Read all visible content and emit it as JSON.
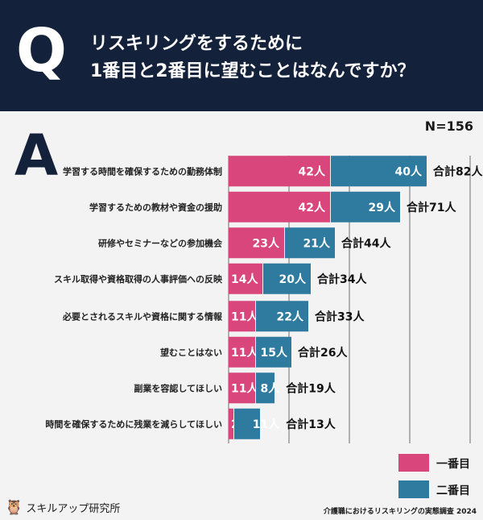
{
  "header": {
    "q": "Q",
    "title_line1": "リスキリングをするために",
    "title_line2": "1番目と2番目に望むことはなんですか？"
  },
  "answer_mark": "A",
  "sample": "N=156",
  "chart_data": {
    "type": "bar",
    "stacked": true,
    "orientation": "horizontal",
    "title": "リスキリングをするために1番目と2番目に望むことはなんですか？",
    "categories": [
      "学習する時間を確保するための勤務体制",
      "学習するための教材や資金の援助",
      "研修やセミナーなどの参加機会",
      "スキル取得や資格取得の人事評価への反映",
      "必要とされるスキルや資格に関する情報",
      "望むことはない",
      "副業を容認してほしい",
      "時間を確保するために残業を減らしてほしい"
    ],
    "series": [
      {
        "name": "一番目",
        "color": "#d8467b",
        "values": [
          42,
          42,
          23,
          14,
          11,
          11,
          11,
          2
        ]
      },
      {
        "name": "二番目",
        "color": "#2e7b9f",
        "values": [
          40,
          29,
          21,
          20,
          22,
          15,
          8,
          11
        ]
      }
    ],
    "totals": [
      82,
      71,
      44,
      34,
      33,
      26,
      19,
      13
    ],
    "unit": "人",
    "total_prefix": "合計",
    "xlim": [
      0,
      100
    ],
    "grid": true,
    "legend": "bottom-right"
  },
  "footer": {
    "brand": "スキルアップ研究所",
    "source": "介護職におけるリスキリングの実態調査 2024"
  }
}
